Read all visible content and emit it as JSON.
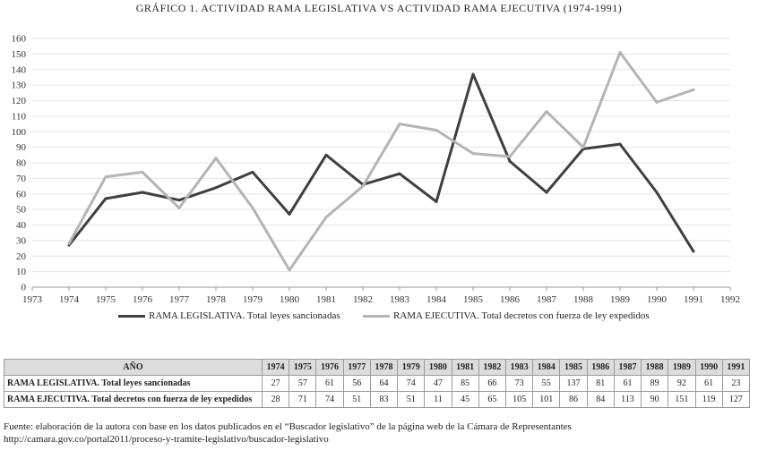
{
  "chart_data": {
    "type": "line",
    "title": "GRÁFICO 1. ACTIVIDAD RAMA LEGISLATIVA VS ACTIVIDAD RAMA EJECUTIVA (1974-1991)",
    "xlabel": "",
    "ylabel": "",
    "x_ticks": [
      "1973",
      "1974",
      "1975",
      "1976",
      "1977",
      "1978",
      "1979",
      "1980",
      "1981",
      "1982",
      "1983",
      "1984",
      "1985",
      "1986",
      "1987",
      "1988",
      "1989",
      "1990",
      "1991",
      "1992"
    ],
    "y_ticks": [
      "0",
      "10",
      "20",
      "30",
      "40",
      "50",
      "60",
      "70",
      "80",
      "90",
      "100",
      "110",
      "120",
      "130",
      "140",
      "150",
      "160"
    ],
    "xlim": [
      1973,
      1992
    ],
    "ylim": [
      0,
      160
    ],
    "grid": true,
    "legend_position": "bottom",
    "x": [
      1974,
      1975,
      1976,
      1977,
      1978,
      1979,
      1980,
      1981,
      1982,
      1983,
      1984,
      1985,
      1986,
      1987,
      1988,
      1989,
      1990,
      1991
    ],
    "series": [
      {
        "name": "RAMA LEGISLATIVA. Total leyes sancionadas",
        "color": "#3f3f3f",
        "values": [
          27,
          57,
          61,
          56,
          64,
          74,
          47,
          85,
          66,
          73,
          55,
          137,
          81,
          61,
          89,
          92,
          61,
          23
        ]
      },
      {
        "name": "RAMA EJECUTIVA. Total decretos con fuerza de ley expedidos",
        "color": "#b4b4b4",
        "values": [
          28,
          71,
          74,
          51,
          83,
          51,
          11,
          45,
          65,
          105,
          101,
          86,
          84,
          113,
          90,
          151,
          119,
          127
        ]
      }
    ]
  },
  "table": {
    "header_label": "AÑO",
    "years": [
      "1974",
      "1975",
      "1976",
      "1977",
      "1978",
      "1979",
      "1980",
      "1981",
      "1982",
      "1983",
      "1984",
      "1985",
      "1986",
      "1987",
      "1988",
      "1989",
      "1990",
      "1991"
    ],
    "rows": [
      {
        "label": "RAMA LEGISLATIVA. Total leyes sancionadas",
        "values": [
          "27",
          "57",
          "61",
          "56",
          "64",
          "74",
          "47",
          "85",
          "66",
          "73",
          "55",
          "137",
          "81",
          "61",
          "89",
          "92",
          "61",
          "23"
        ]
      },
      {
        "label": "RAMA EJECUTIVA. Total decretos con fuerza de ley expedidos",
        "values": [
          "28",
          "71",
          "74",
          "51",
          "83",
          "51",
          "11",
          "45",
          "65",
          "105",
          "101",
          "86",
          "84",
          "113",
          "90",
          "151",
          "119",
          "127"
        ]
      }
    ]
  },
  "source": {
    "line1": "Fuente: elaboración de la autora con base en los datos publicados en el “Buscador legislativo” de la página web de la Cámara de Representantes",
    "line2": "http://camara.gov.co/portal2011/proceso-y-tramite-legislativo/buscador-legislativo"
  }
}
